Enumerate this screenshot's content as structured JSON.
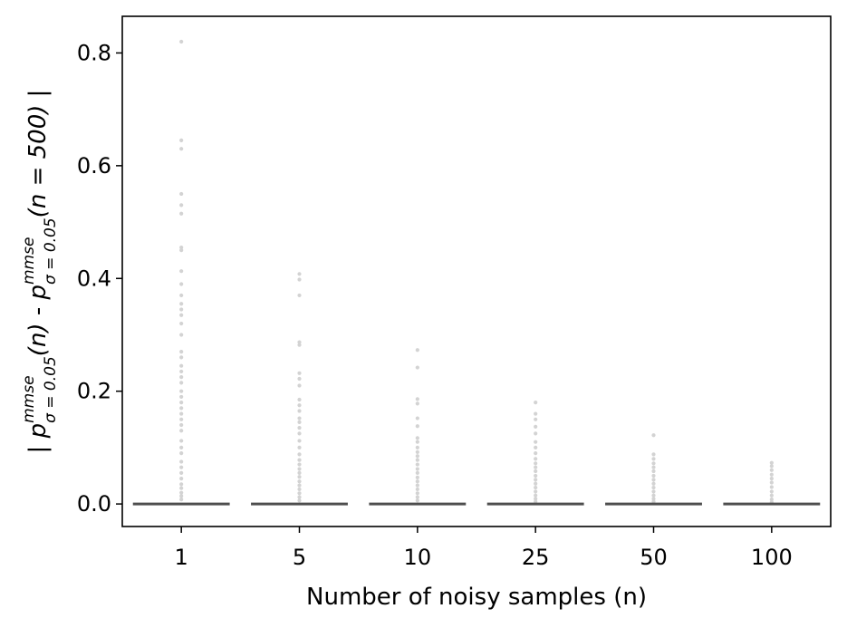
{
  "chart_data": {
    "type": "boxplot",
    "xlabel": "Number of noisy samples (n)",
    "ylabel": {
      "prefix": "| ",
      "p1": "p",
      "sup1": "mmse",
      "sub1": "σ = 0.05",
      "arg1": "(n)",
      "sep": " - ",
      "p2": "p",
      "sup2": "mmse",
      "sub2": "σ = 0.05",
      "arg2": "(n = 500)",
      "suffix": " |"
    },
    "ylim": [
      -0.04,
      0.865
    ],
    "yticks": [
      0.0,
      0.2,
      0.4,
      0.6,
      0.8
    ],
    "ytick_labels": [
      "0.0",
      "0.2",
      "0.4",
      "0.6",
      "0.8"
    ],
    "categories": [
      "1",
      "5",
      "10",
      "25",
      "50",
      "100"
    ],
    "medians": [
      0,
      0,
      0,
      0,
      0,
      0
    ],
    "outliers": [
      [
        0.82,
        0.645,
        0.63,
        0.55,
        0.53,
        0.515,
        0.455,
        0.45,
        0.413,
        0.39,
        0.37,
        0.355,
        0.345,
        0.335,
        0.32,
        0.3,
        0.27,
        0.26,
        0.245,
        0.235,
        0.225,
        0.215,
        0.2,
        0.19,
        0.18,
        0.17,
        0.16,
        0.15,
        0.14,
        0.13,
        0.112,
        0.1,
        0.09,
        0.075,
        0.065,
        0.055,
        0.045,
        0.035,
        0.028,
        0.02,
        0.014,
        0.008
      ],
      [
        0.408,
        0.398,
        0.37,
        0.287,
        0.282,
        0.232,
        0.222,
        0.21,
        0.185,
        0.175,
        0.165,
        0.152,
        0.145,
        0.135,
        0.125,
        0.112,
        0.1,
        0.088,
        0.078,
        0.07,
        0.062,
        0.055,
        0.048,
        0.04,
        0.033,
        0.026,
        0.019,
        0.012,
        0.006
      ],
      [
        0.273,
        0.242,
        0.186,
        0.178,
        0.152,
        0.138,
        0.117,
        0.11,
        0.1,
        0.092,
        0.085,
        0.078,
        0.07,
        0.062,
        0.055,
        0.047,
        0.04,
        0.033,
        0.026,
        0.019,
        0.012,
        0.006
      ],
      [
        0.18,
        0.16,
        0.15,
        0.137,
        0.125,
        0.11,
        0.1,
        0.09,
        0.08,
        0.072,
        0.065,
        0.058,
        0.05,
        0.043,
        0.036,
        0.029,
        0.022,
        0.015,
        0.009,
        0.004
      ],
      [
        0.122,
        0.088,
        0.08,
        0.072,
        0.065,
        0.058,
        0.05,
        0.043,
        0.036,
        0.029,
        0.022,
        0.015,
        0.009,
        0.004
      ],
      [
        0.073,
        0.067,
        0.06,
        0.052,
        0.045,
        0.038,
        0.03,
        0.022,
        0.015,
        0.008,
        0.003
      ]
    ],
    "colors": {
      "median": "#4d4d4d",
      "outlier": "#d3d3d3",
      "axis": "#000000"
    },
    "grid": false,
    "legend": "none"
  }
}
